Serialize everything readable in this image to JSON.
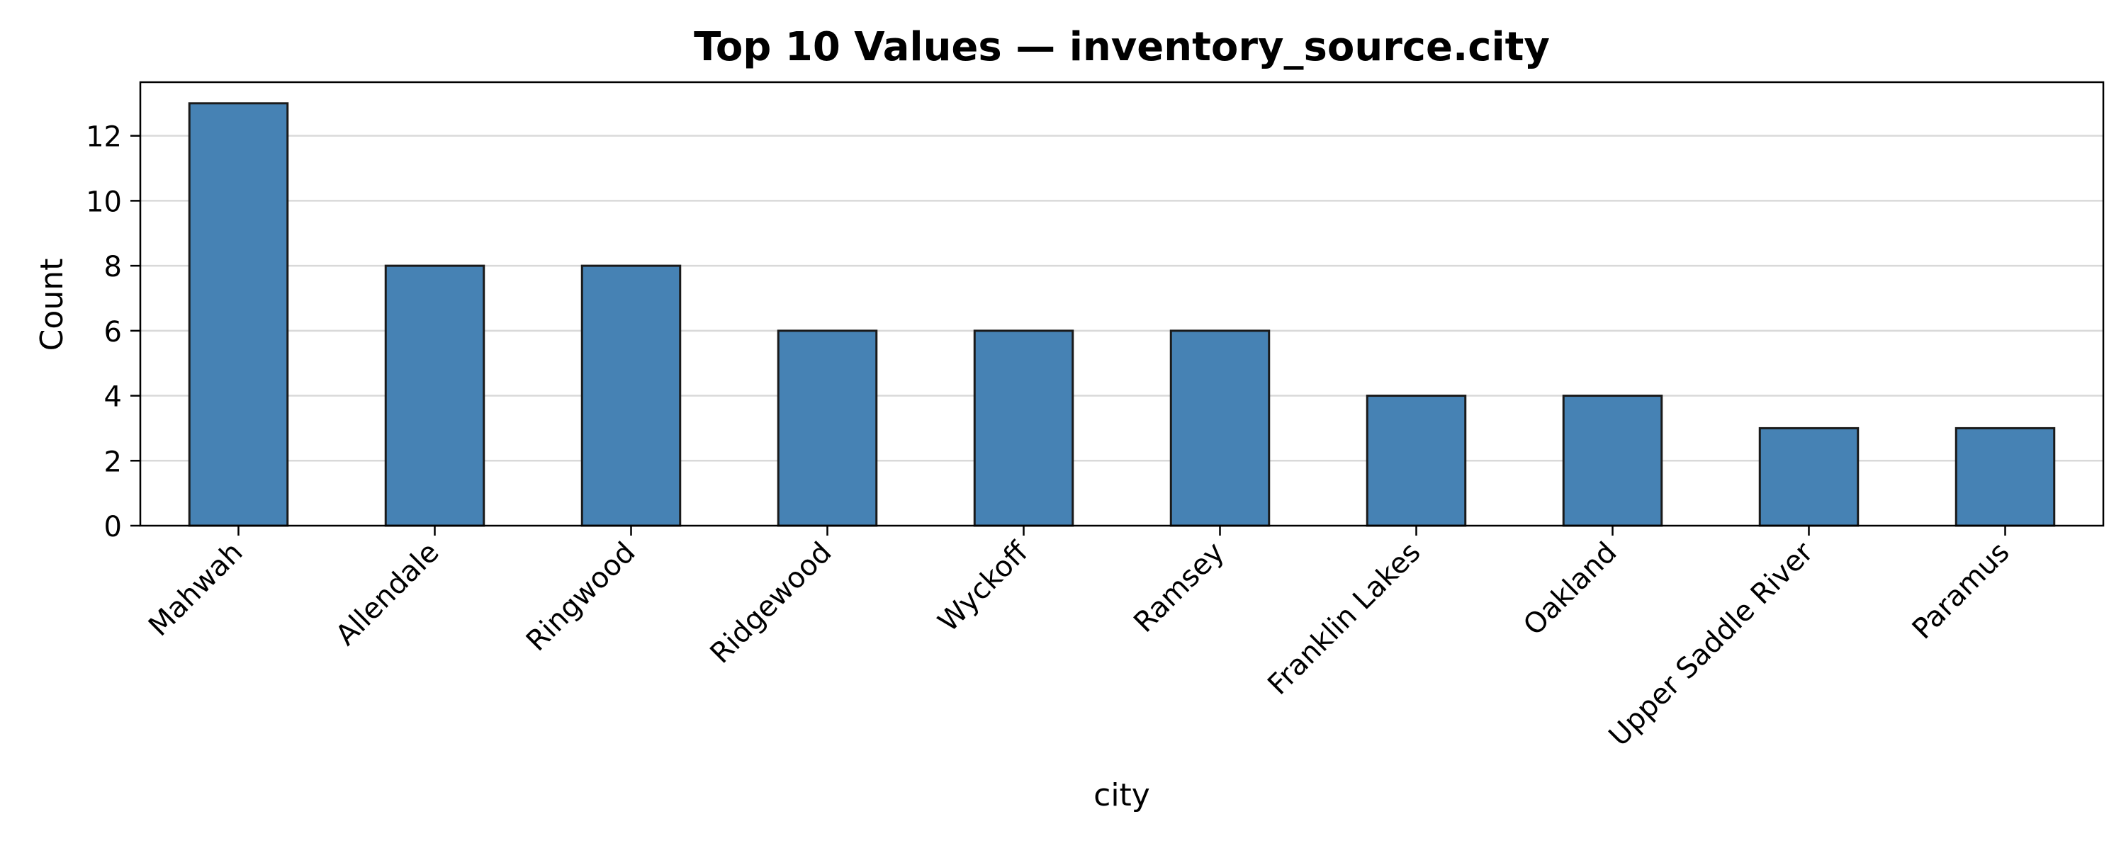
{
  "chart_data": {
    "type": "bar",
    "title": "Top 10 Values — inventory_source.city",
    "xlabel": "city",
    "ylabel": "Count",
    "categories": [
      "Mahwah",
      "Allendale",
      "Ringwood",
      "Ridgewood",
      "Wyckoff",
      "Ramsey",
      "Franklin Lakes",
      "Oakland",
      "Upper Saddle River",
      "Paramus"
    ],
    "values": [
      13,
      8,
      8,
      6,
      6,
      6,
      4,
      4,
      3,
      3
    ],
    "ylim": [
      0,
      13.65
    ],
    "yticks": [
      0,
      2,
      4,
      6,
      8,
      10,
      12
    ],
    "grid": "y",
    "legend": "none",
    "colors": {
      "bar_fill": "#4682b4",
      "bar_edge": "#1a1a1a",
      "grid": "#d9d9d9",
      "axis": "#000000"
    }
  }
}
